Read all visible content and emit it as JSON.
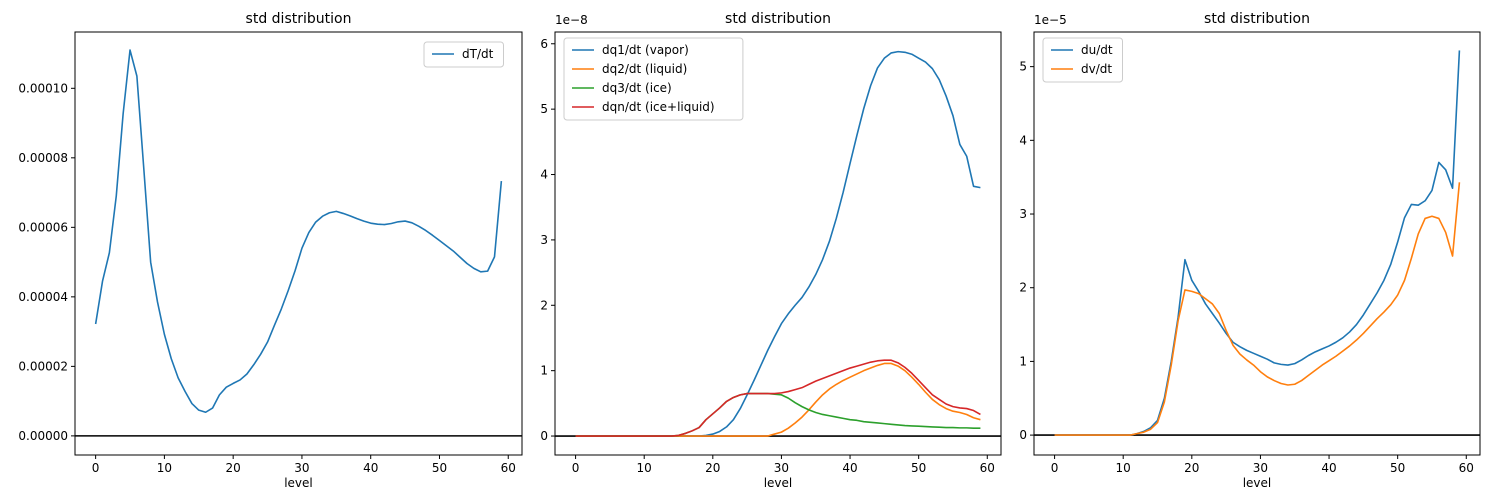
{
  "charts": [
    {
      "title": "std distribution",
      "xlabel": "level",
      "offset_text": "",
      "x_ticks": [
        "0",
        "10",
        "20",
        "30",
        "40",
        "50",
        "60"
      ],
      "y_ticks": [
        "0.00000",
        "0.00002",
        "0.00004",
        "0.00006",
        "0.00008",
        "0.00010"
      ],
      "legend": [
        "dT/dt"
      ]
    },
    {
      "title": "std distribution",
      "xlabel": "level",
      "offset_text": "1e−8",
      "x_ticks": [
        "0",
        "10",
        "20",
        "30",
        "40",
        "50",
        "60"
      ],
      "y_ticks": [
        "0",
        "1",
        "2",
        "3",
        "4",
        "5",
        "6"
      ],
      "legend": [
        "dq1/dt (vapor)",
        "dq2/dt (liquid)",
        "dq3/dt (ice)",
        "dqn/dt (ice+liquid)"
      ]
    },
    {
      "title": "std distribution",
      "xlabel": "level",
      "offset_text": "1e−5",
      "x_ticks": [
        "0",
        "10",
        "20",
        "30",
        "40",
        "50",
        "60"
      ],
      "y_ticks": [
        "0",
        "1",
        "2",
        "3",
        "4",
        "5"
      ],
      "legend": [
        "du/dt",
        "dv/dt"
      ]
    }
  ],
  "chart_data": [
    {
      "type": "line",
      "title": "std distribution",
      "xlabel": "level",
      "ylabel": "",
      "xlim": [
        -3,
        62
      ],
      "ylim": [
        -5.5e-06,
        0.0001162
      ],
      "yticks": [
        0,
        2e-05,
        4e-05,
        6e-05,
        8e-05,
        0.0001
      ],
      "xticks": [
        0,
        10,
        20,
        30,
        40,
        50,
        60
      ],
      "hline": 0,
      "legend_position": "top-right",
      "series": [
        {
          "name": "dT/dt",
          "color": "#1f77b4",
          "x": [
            0,
            1,
            2,
            3,
            4,
            5,
            6,
            7,
            8,
            9,
            10,
            11,
            12,
            13,
            14,
            15,
            16,
            17,
            18,
            19,
            20,
            21,
            22,
            23,
            24,
            25,
            26,
            27,
            28,
            29,
            30,
            31,
            32,
            33,
            34,
            35,
            36,
            37,
            38,
            39,
            40,
            41,
            42,
            43,
            44,
            45,
            46,
            47,
            48,
            49,
            50,
            51,
            52,
            53,
            54,
            55,
            56,
            57,
            58,
            59
          ],
          "values": [
            3.22e-05,
            4.45e-05,
            5.27e-05,
            6.9e-05,
            9.27e-05,
            0.000111,
            0.0001035,
            7.7e-05,
            5e-05,
            3.85e-05,
            2.92e-05,
            2.22e-05,
            1.67e-05,
            1.28e-05,
            9.3e-06,
            7.4e-06,
            6.8e-06,
            8e-06,
            1.18e-05,
            1.4e-05,
            1.51e-05,
            1.61e-05,
            1.78e-05,
            2.05e-05,
            2.35e-05,
            2.7e-05,
            3.18e-05,
            3.65e-05,
            4.18e-05,
            4.75e-05,
            5.4e-05,
            5.85e-05,
            6.15e-05,
            6.32e-05,
            6.42e-05,
            6.46e-05,
            6.4e-05,
            6.33e-05,
            6.25e-05,
            6.18e-05,
            6.12e-05,
            6.09e-05,
            6.08e-05,
            6.11e-05,
            6.16e-05,
            6.18e-05,
            6.13e-05,
            6.03e-05,
            5.91e-05,
            5.77e-05,
            5.62e-05,
            5.47e-05,
            5.32e-05,
            5.14e-05,
            4.96e-05,
            4.82e-05,
            4.72e-05,
            4.74e-05,
            5.15e-05,
            7.33e-05
          ]
        }
      ]
    },
    {
      "type": "line",
      "title": "std distribution",
      "xlabel": "level",
      "ylabel": "",
      "y_scale_factor": "1e-8",
      "xlim": [
        -3,
        62
      ],
      "ylim": [
        -0.29,
        6.18
      ],
      "yticks": [
        0,
        1,
        2,
        3,
        4,
        5,
        6
      ],
      "xticks": [
        0,
        10,
        20,
        30,
        40,
        50,
        60
      ],
      "hline": 0,
      "legend_position": "top-left",
      "series": [
        {
          "name": "dq1/dt (vapor)",
          "color": "#1f77b4",
          "x": [
            0,
            1,
            2,
            3,
            4,
            5,
            6,
            7,
            8,
            9,
            10,
            11,
            12,
            13,
            14,
            15,
            16,
            17,
            18,
            19,
            20,
            21,
            22,
            23,
            24,
            25,
            26,
            27,
            28,
            29,
            30,
            31,
            32,
            33,
            34,
            35,
            36,
            37,
            38,
            39,
            40,
            41,
            42,
            43,
            44,
            45,
            46,
            47,
            48,
            49,
            50,
            51,
            52,
            53,
            54,
            55,
            56,
            57,
            58,
            59
          ],
          "values": [
            0,
            0,
            0,
            0,
            0,
            0,
            0,
            0,
            0,
            0,
            0,
            0,
            0,
            0,
            0,
            0,
            0,
            0,
            0,
            0.01,
            0.03,
            0.07,
            0.14,
            0.25,
            0.42,
            0.63,
            0.85,
            1.08,
            1.31,
            1.52,
            1.72,
            1.87,
            2.0,
            2.12,
            2.28,
            2.47,
            2.7,
            2.98,
            3.33,
            3.73,
            4.17,
            4.6,
            5.01,
            5.36,
            5.63,
            5.78,
            5.86,
            5.88,
            5.87,
            5.84,
            5.78,
            5.72,
            5.62,
            5.45,
            5.2,
            4.9,
            4.46,
            4.28,
            3.82,
            3.8
          ]
        },
        {
          "name": "dq2/dt (liquid)",
          "color": "#ff7f0e",
          "x": [
            0,
            1,
            2,
            3,
            4,
            5,
            6,
            7,
            8,
            9,
            10,
            11,
            12,
            13,
            14,
            15,
            16,
            17,
            18,
            19,
            20,
            21,
            22,
            23,
            24,
            25,
            26,
            27,
            28,
            29,
            30,
            31,
            32,
            33,
            34,
            35,
            36,
            37,
            38,
            39,
            40,
            41,
            42,
            43,
            44,
            45,
            46,
            47,
            48,
            49,
            50,
            51,
            52,
            53,
            54,
            55,
            56,
            57,
            58,
            59
          ],
          "values": [
            0,
            0,
            0,
            0,
            0,
            0,
            0,
            0,
            0,
            0,
            0,
            0,
            0,
            0,
            0,
            0,
            0,
            0,
            0,
            0,
            0,
            0,
            0,
            0,
            0,
            0,
            0,
            0,
            0,
            0.03,
            0.06,
            0.12,
            0.2,
            0.29,
            0.4,
            0.52,
            0.63,
            0.72,
            0.79,
            0.85,
            0.9,
            0.95,
            1.0,
            1.04,
            1.08,
            1.11,
            1.11,
            1.07,
            1.0,
            0.9,
            0.79,
            0.67,
            0.56,
            0.48,
            0.42,
            0.38,
            0.36,
            0.33,
            0.28,
            0.25
          ]
        },
        {
          "name": "dq3/dt (ice)",
          "color": "#2ca02c",
          "x": [
            0,
            1,
            2,
            3,
            4,
            5,
            6,
            7,
            8,
            9,
            10,
            11,
            12,
            13,
            14,
            15,
            16,
            17,
            18,
            19,
            20,
            21,
            22,
            23,
            24,
            25,
            26,
            27,
            28,
            29,
            30,
            31,
            32,
            33,
            34,
            35,
            36,
            37,
            38,
            39,
            40,
            41,
            42,
            43,
            44,
            45,
            46,
            47,
            48,
            49,
            50,
            51,
            52,
            53,
            54,
            55,
            56,
            57,
            58,
            59
          ],
          "values": [
            0,
            0,
            0,
            0,
            0,
            0,
            0,
            0,
            0,
            0,
            0,
            0,
            0,
            0,
            0,
            0.01,
            0.04,
            0.08,
            0.13,
            0.25,
            0.34,
            0.43,
            0.53,
            0.59,
            0.63,
            0.65,
            0.65,
            0.65,
            0.65,
            0.64,
            0.63,
            0.58,
            0.51,
            0.45,
            0.4,
            0.36,
            0.33,
            0.31,
            0.29,
            0.27,
            0.25,
            0.24,
            0.22,
            0.21,
            0.2,
            0.19,
            0.18,
            0.17,
            0.16,
            0.155,
            0.15,
            0.145,
            0.14,
            0.135,
            0.13,
            0.13,
            0.125,
            0.125,
            0.12,
            0.12
          ]
        },
        {
          "name": "dqn/dt (ice+liquid)",
          "color": "#d62728",
          "x": [
            0,
            1,
            2,
            3,
            4,
            5,
            6,
            7,
            8,
            9,
            10,
            11,
            12,
            13,
            14,
            15,
            16,
            17,
            18,
            19,
            20,
            21,
            22,
            23,
            24,
            25,
            26,
            27,
            28,
            29,
            30,
            31,
            32,
            33,
            34,
            35,
            36,
            37,
            38,
            39,
            40,
            41,
            42,
            43,
            44,
            45,
            46,
            47,
            48,
            49,
            50,
            51,
            52,
            53,
            54,
            55,
            56,
            57,
            58,
            59
          ],
          "values": [
            0,
            0,
            0,
            0,
            0,
            0,
            0,
            0,
            0,
            0,
            0,
            0,
            0,
            0,
            0,
            0.01,
            0.04,
            0.08,
            0.13,
            0.25,
            0.34,
            0.43,
            0.53,
            0.59,
            0.63,
            0.65,
            0.65,
            0.65,
            0.65,
            0.65,
            0.66,
            0.68,
            0.71,
            0.74,
            0.79,
            0.84,
            0.88,
            0.92,
            0.96,
            1.0,
            1.04,
            1.07,
            1.1,
            1.13,
            1.15,
            1.16,
            1.16,
            1.12,
            1.05,
            0.96,
            0.85,
            0.74,
            0.63,
            0.56,
            0.49,
            0.45,
            0.43,
            0.42,
            0.39,
            0.33
          ]
        }
      ]
    },
    {
      "type": "line",
      "title": "std distribution",
      "xlabel": "level",
      "ylabel": "",
      "y_scale_factor": "1e-5",
      "xlim": [
        -3,
        62
      ],
      "ylim": [
        -0.27,
        5.47
      ],
      "yticks": [
        0,
        1,
        2,
        3,
        4,
        5
      ],
      "xticks": [
        0,
        10,
        20,
        30,
        40,
        50,
        60
      ],
      "hline": 0,
      "legend_position": "top-left",
      "series": [
        {
          "name": "du/dt",
          "color": "#1f77b4",
          "x": [
            0,
            1,
            2,
            3,
            4,
            5,
            6,
            7,
            8,
            9,
            10,
            11,
            12,
            13,
            14,
            15,
            16,
            17,
            18,
            19,
            20,
            21,
            22,
            23,
            24,
            25,
            26,
            27,
            28,
            29,
            30,
            31,
            32,
            33,
            34,
            35,
            36,
            37,
            38,
            39,
            40,
            41,
            42,
            43,
            44,
            45,
            46,
            47,
            48,
            49,
            50,
            51,
            52,
            53,
            54,
            55,
            56,
            57,
            58,
            59
          ],
          "values": [
            0,
            0,
            0,
            0,
            0,
            0,
            0,
            0,
            0,
            0,
            0,
            0,
            0.02,
            0.05,
            0.1,
            0.2,
            0.5,
            1.0,
            1.6,
            2.38,
            2.1,
            1.95,
            1.78,
            1.65,
            1.52,
            1.38,
            1.26,
            1.2,
            1.15,
            1.11,
            1.07,
            1.03,
            0.98,
            0.96,
            0.95,
            0.97,
            1.02,
            1.08,
            1.13,
            1.17,
            1.21,
            1.26,
            1.32,
            1.4,
            1.5,
            1.63,
            1.78,
            1.93,
            2.1,
            2.32,
            2.62,
            2.95,
            3.13,
            3.12,
            3.18,
            3.32,
            3.7,
            3.6,
            3.35,
            5.22
          ]
        },
        {
          "name": "dv/dt",
          "color": "#ff7f0e",
          "x": [
            0,
            1,
            2,
            3,
            4,
            5,
            6,
            7,
            8,
            9,
            10,
            11,
            12,
            13,
            14,
            15,
            16,
            17,
            18,
            19,
            20,
            21,
            22,
            23,
            24,
            25,
            26,
            27,
            28,
            29,
            30,
            31,
            32,
            33,
            34,
            35,
            36,
            37,
            38,
            39,
            40,
            41,
            42,
            43,
            44,
            45,
            46,
            47,
            48,
            49,
            50,
            51,
            52,
            53,
            54,
            55,
            56,
            57,
            58,
            59
          ],
          "values": [
            0,
            0,
            0,
            0,
            0,
            0,
            0,
            0,
            0,
            0,
            0,
            0,
            0.02,
            0.04,
            0.08,
            0.17,
            0.45,
            0.95,
            1.55,
            1.97,
            1.95,
            1.92,
            1.85,
            1.78,
            1.65,
            1.42,
            1.22,
            1.1,
            1.02,
            0.95,
            0.86,
            0.79,
            0.74,
            0.7,
            0.68,
            0.69,
            0.74,
            0.81,
            0.88,
            0.95,
            1.01,
            1.07,
            1.14,
            1.21,
            1.29,
            1.38,
            1.48,
            1.58,
            1.67,
            1.77,
            1.9,
            2.1,
            2.4,
            2.73,
            2.94,
            2.97,
            2.94,
            2.75,
            2.43,
            3.43
          ]
        }
      ]
    }
  ]
}
